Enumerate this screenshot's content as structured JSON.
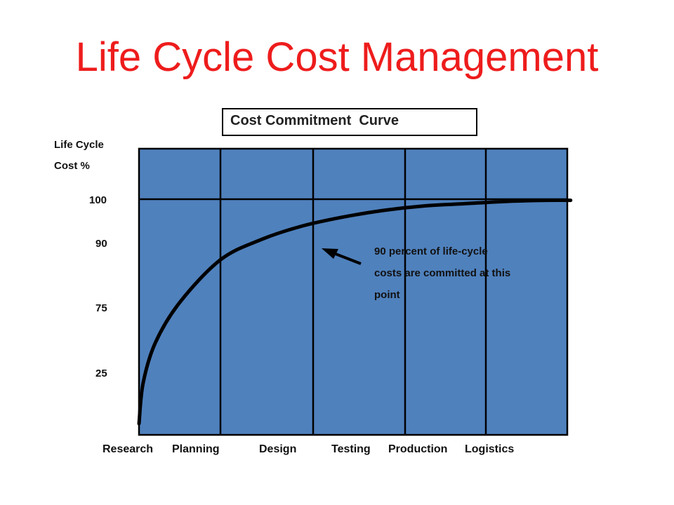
{
  "page": {
    "title": "Life Cycle Cost Management"
  },
  "colors": {
    "title": "#ee1c1c",
    "plot_fill": "#4f81bd",
    "line": "#000000"
  },
  "chart_data": {
    "type": "line",
    "title": "Cost Commitment  Curve",
    "ylabel_lines": [
      "Life Cycle",
      "Cost %"
    ],
    "xlabel": "",
    "categories": [
      "Research",
      "Planning",
      "Design",
      "Testing",
      "Production",
      "Logistics"
    ],
    "yticks": [
      "100",
      "90",
      "75",
      "25"
    ],
    "reference_line": 100,
    "series": [
      {
        "x": [
          0,
          0.05,
          0.2,
          0.5,
          1,
          1.5,
          2,
          2.5,
          3,
          3.5,
          4,
          4.5,
          5,
          5.3
        ],
        "y": [
          0,
          18,
          36,
          54,
          73,
          82,
          88,
          92,
          95,
          97,
          98,
          99,
          99.5,
          99.5
        ]
      }
    ],
    "annotation": {
      "lines": [
        "90 percent of life-cycle",
        "costs are committed at this",
        "point"
      ],
      "points_to": {
        "x": 2.2,
        "y": 90
      }
    },
    "grid": "vertical dividers between categories"
  }
}
